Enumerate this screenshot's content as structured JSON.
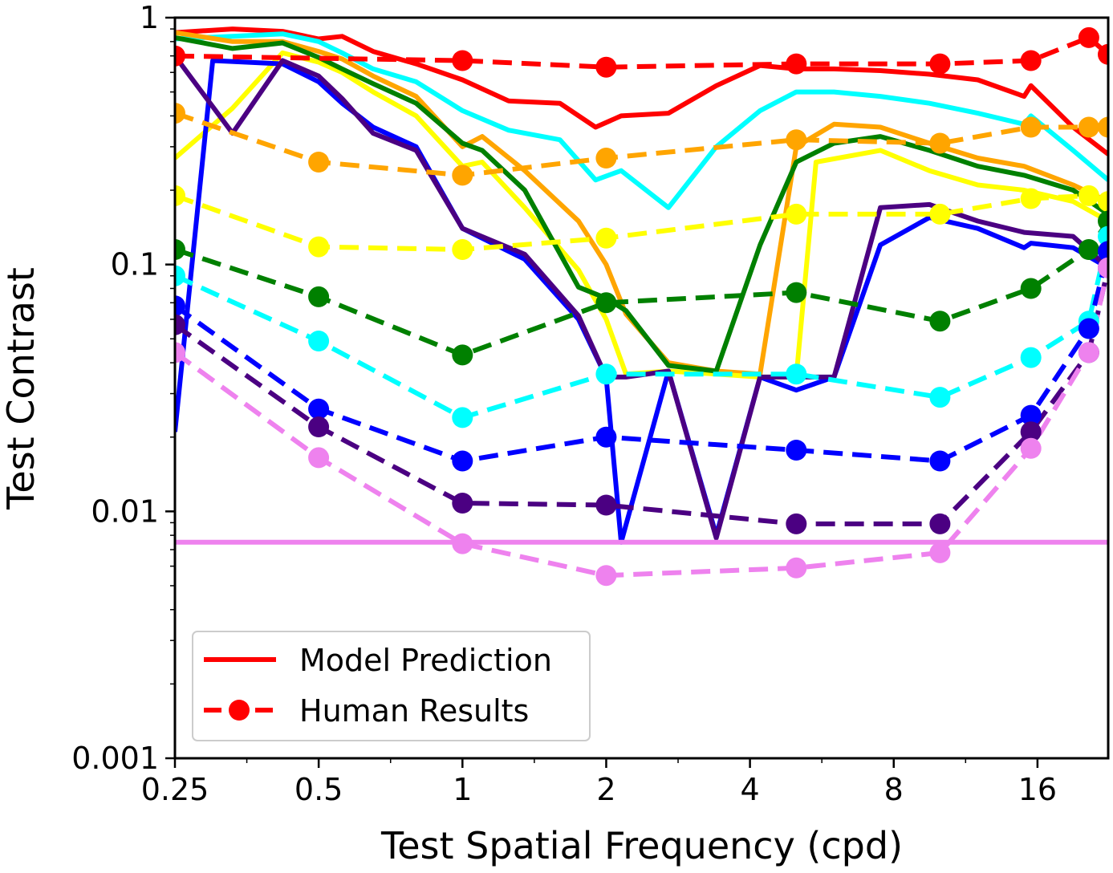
{
  "chart_data": {
    "type": "line",
    "title": "",
    "xlabel": "Test Spatial Frequency (cpd)",
    "ylabel": "Test Contrast",
    "xscale": "log2",
    "yscale": "log10",
    "xlim": [
      0.25,
      22.5
    ],
    "ylim": [
      0.001,
      1
    ],
    "xticks": [
      0.25,
      0.5,
      1,
      2,
      4,
      8,
      16
    ],
    "xtick_labels": [
      "0.25",
      "0.5",
      "1",
      "2",
      "4",
      "8",
      "16"
    ],
    "yticks": [
      0.001,
      0.01,
      0.1,
      1
    ],
    "ytick_labels": [
      "0.001",
      "0.01",
      "0.1",
      "1"
    ],
    "grid": false,
    "legend": {
      "position": "lower-left",
      "entries": [
        {
          "label": "Model Prediction",
          "style": "solid",
          "color": "#ff0000"
        },
        {
          "label": "Human Results",
          "style": "dashed-marker",
          "color": "#ff0000"
        }
      ]
    },
    "series": [
      {
        "color": "#ff0000",
        "kind": "model",
        "x": [
          0.25,
          0.33,
          0.42,
          0.5,
          0.56,
          0.65,
          0.8,
          1.0,
          1.25,
          1.6,
          1.9,
          2.15,
          2.7,
          3.4,
          4.2,
          5.0,
          6.0,
          7.5,
          9.5,
          12,
          15,
          15.5,
          19,
          22.5
        ],
        "y": [
          0.87,
          0.9,
          0.88,
          0.82,
          0.84,
          0.73,
          0.65,
          0.56,
          0.46,
          0.45,
          0.36,
          0.4,
          0.41,
          0.53,
          0.64,
          0.62,
          0.62,
          0.61,
          0.59,
          0.56,
          0.48,
          0.53,
          0.36,
          0.28
        ]
      },
      {
        "color": "#00ffff",
        "kind": "model",
        "x": [
          0.25,
          0.33,
          0.42,
          0.5,
          0.56,
          0.65,
          0.8,
          1.0,
          1.25,
          1.6,
          1.9,
          2.15,
          2.7,
          3.4,
          4.2,
          5.0,
          6.0,
          7.5,
          9.5,
          12,
          15,
          15.5,
          19,
          22.5
        ],
        "y": [
          0.82,
          0.84,
          0.86,
          0.8,
          0.72,
          0.62,
          0.55,
          0.42,
          0.35,
          0.32,
          0.22,
          0.24,
          0.17,
          0.3,
          0.42,
          0.5,
          0.5,
          0.48,
          0.45,
          0.41,
          0.37,
          0.4,
          0.29,
          0.22
        ]
      },
      {
        "color": "#ffa500",
        "kind": "model",
        "x": [
          0.25,
          0.33,
          0.42,
          0.5,
          0.56,
          0.65,
          0.8,
          1.0,
          1.1,
          1.35,
          1.75,
          2.0,
          2.2,
          2.7,
          3.4,
          4.2,
          5.0,
          6.0,
          7.5,
          9.5,
          12,
          15,
          19,
          22.5
        ],
        "y": [
          0.87,
          0.8,
          0.8,
          0.73,
          0.68,
          0.58,
          0.48,
          0.3,
          0.33,
          0.24,
          0.15,
          0.1,
          0.063,
          0.04,
          0.037,
          0.036,
          0.3,
          0.37,
          0.36,
          0.31,
          0.27,
          0.25,
          0.21,
          0.18
        ]
      },
      {
        "color": "#ffff00",
        "kind": "model",
        "x": [
          0.25,
          0.33,
          0.42,
          0.5,
          0.56,
          0.65,
          0.8,
          1.0,
          1.1,
          1.35,
          1.75,
          2.0,
          2.2,
          2.7,
          3.4,
          4.2,
          5.0,
          5.5,
          7.5,
          9.5,
          12,
          15,
          19,
          22.5
        ],
        "y": [
          0.27,
          0.43,
          0.72,
          0.66,
          0.6,
          0.5,
          0.4,
          0.25,
          0.26,
          0.17,
          0.095,
          0.06,
          0.036,
          0.037,
          0.036,
          0.035,
          0.035,
          0.26,
          0.29,
          0.24,
          0.21,
          0.2,
          0.18,
          0.15
        ]
      },
      {
        "color": "#008000",
        "kind": "model",
        "x": [
          0.25,
          0.33,
          0.42,
          0.5,
          0.56,
          0.65,
          0.8,
          1.0,
          1.1,
          1.35,
          1.75,
          2.0,
          2.2,
          2.7,
          3.4,
          4.2,
          5.0,
          6.0,
          7.5,
          9.5,
          12,
          15,
          19,
          22.5
        ],
        "y": [
          0.83,
          0.75,
          0.79,
          0.69,
          0.62,
          0.54,
          0.45,
          0.31,
          0.29,
          0.2,
          0.081,
          0.073,
          0.065,
          0.039,
          0.037,
          0.12,
          0.26,
          0.31,
          0.33,
          0.29,
          0.25,
          0.23,
          0.2,
          0.16
        ]
      },
      {
        "color": "#0000ff",
        "kind": "model",
        "x": [
          0.25,
          0.3,
          0.42,
          0.5,
          0.56,
          0.65,
          0.8,
          1.0,
          1.35,
          1.75,
          2.0,
          2.15,
          2.7,
          3.4,
          4.2,
          5.0,
          6.0,
          7.5,
          9.5,
          12,
          15,
          15.5,
          19,
          22.5
        ],
        "y": [
          0.021,
          0.67,
          0.65,
          0.55,
          0.45,
          0.36,
          0.3,
          0.14,
          0.105,
          0.06,
          0.035,
          0.0075,
          0.037,
          0.008,
          0.035,
          0.031,
          0.035,
          0.12,
          0.155,
          0.14,
          0.117,
          0.122,
          0.117,
          0.097
        ]
      },
      {
        "color": "#4b0082",
        "kind": "model",
        "x": [
          0.25,
          0.33,
          0.42,
          0.5,
          0.56,
          0.65,
          0.8,
          1.0,
          1.35,
          1.75,
          2.0,
          2.2,
          2.7,
          3.4,
          4.2,
          5.0,
          6.0,
          7.5,
          9.5,
          12,
          15,
          19,
          22.5
        ],
        "y": [
          0.7,
          0.34,
          0.67,
          0.58,
          0.47,
          0.34,
          0.29,
          0.14,
          0.11,
          0.062,
          0.035,
          0.035,
          0.037,
          0.0078,
          0.035,
          0.035,
          0.035,
          0.17,
          0.175,
          0.15,
          0.135,
          0.13,
          0.097
        ]
      },
      {
        "color": "#ee82ee",
        "kind": "model",
        "x": [
          0.25,
          22.5
        ],
        "y": [
          0.0075,
          0.0075
        ]
      },
      {
        "color": "#ff0000",
        "kind": "human",
        "x": [
          0.25,
          1,
          2,
          5,
          10,
          15.5,
          20.5,
          22.5
        ],
        "y": [
          0.7,
          0.67,
          0.63,
          0.65,
          0.65,
          0.67,
          0.83,
          0.71
        ]
      },
      {
        "color": "#ffa500",
        "kind": "human",
        "x": [
          0.25,
          0.5,
          1,
          2,
          5,
          10,
          15.5,
          20.5,
          22.5
        ],
        "y": [
          0.41,
          0.26,
          0.23,
          0.27,
          0.32,
          0.31,
          0.36,
          0.36,
          0.36
        ]
      },
      {
        "color": "#ffff00",
        "kind": "human",
        "x": [
          0.25,
          0.5,
          1,
          2,
          5,
          10,
          15.5,
          20.5,
          22.5
        ],
        "y": [
          0.19,
          0.118,
          0.115,
          0.128,
          0.16,
          0.16,
          0.185,
          0.19,
          0.18
        ]
      },
      {
        "color": "#008000",
        "kind": "human",
        "x": [
          0.25,
          0.5,
          1,
          2,
          5,
          10,
          15.5,
          20.5,
          22.5
        ],
        "y": [
          0.115,
          0.074,
          0.043,
          0.07,
          0.077,
          0.059,
          0.08,
          0.115,
          0.15
        ]
      },
      {
        "color": "#00ffff",
        "kind": "human",
        "x": [
          0.25,
          0.5,
          1,
          2,
          5,
          10,
          15.5,
          20.5,
          22.5
        ],
        "y": [
          0.09,
          0.049,
          0.024,
          0.036,
          0.036,
          0.029,
          0.042,
          0.059,
          0.13
        ]
      },
      {
        "color": "#0000ff",
        "kind": "human",
        "x": [
          0.25,
          0.5,
          1,
          2,
          5,
          10,
          15.5,
          20.5,
          22.5
        ],
        "y": [
          0.068,
          0.026,
          0.016,
          0.02,
          0.0177,
          0.016,
          0.0245,
          0.055,
          0.113
        ]
      },
      {
        "color": "#4b0082",
        "kind": "human",
        "x": [
          0.25,
          0.5,
          1,
          2,
          5,
          10,
          15.5,
          20.5,
          22.5
        ],
        "y": [
          0.057,
          0.022,
          0.0108,
          0.0106,
          0.0089,
          0.0089,
          0.021,
          0.044,
          0.097
        ]
      },
      {
        "color": "#ee82ee",
        "kind": "human",
        "x": [
          0.25,
          0.5,
          1,
          2,
          5,
          10,
          15.5,
          20.5,
          22.5
        ],
        "y": [
          0.044,
          0.0165,
          0.0074,
          0.0055,
          0.0059,
          0.0068,
          0.018,
          0.044,
          0.097
        ]
      }
    ]
  }
}
